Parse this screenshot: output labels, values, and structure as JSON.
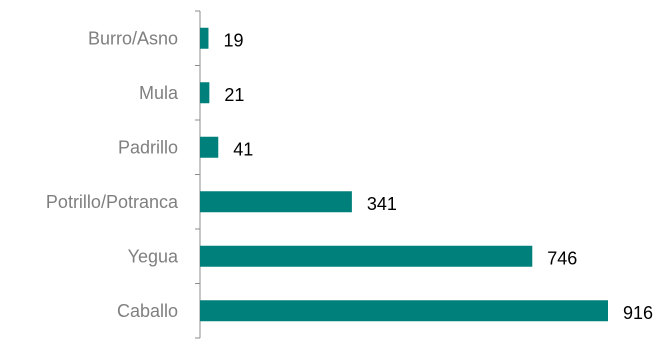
{
  "chart_data": {
    "type": "bar",
    "orientation": "horizontal",
    "categories": [
      "Burro/Asno",
      "Mula",
      "Padrillo",
      "Potrillo/Potranca",
      "Yegua",
      "Caballo"
    ],
    "values": [
      19,
      21,
      41,
      341,
      746,
      916
    ],
    "bar_color": "#00807a",
    "title": "",
    "xlabel": "",
    "ylabel": "",
    "xlim": [
      0,
      916
    ],
    "grid": false,
    "legend": "none",
    "data_labels": true
  }
}
